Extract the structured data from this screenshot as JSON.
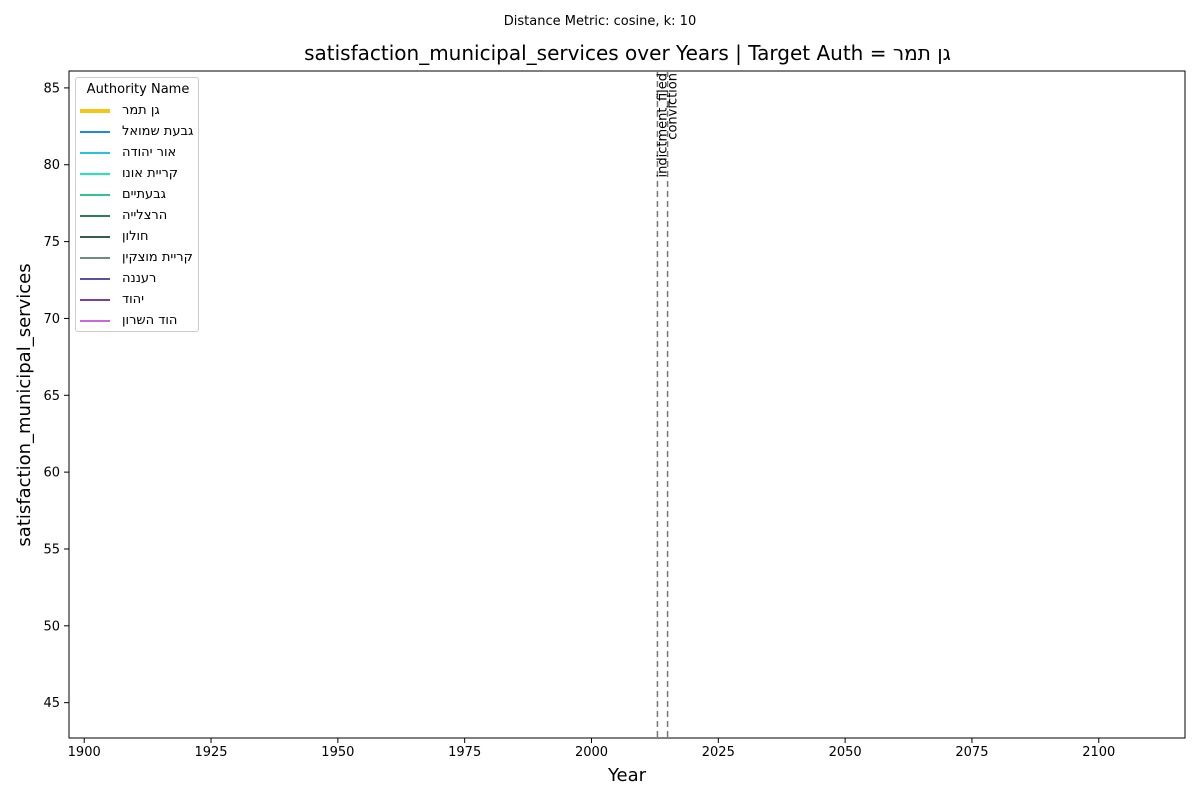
{
  "suptitle": "Distance Metric: cosine, k: 10",
  "chart_data": {
    "type": "line",
    "title": "satisfaction_municipal_services over Years | Target Auth = גן תמר",
    "xlabel": "Year",
    "ylabel": "satisfaction_municipal_services",
    "xlim": [
      1897,
      2117
    ],
    "ylim": [
      42.7,
      86.1
    ],
    "xticks": [
      1900,
      1925,
      1950,
      1975,
      2000,
      2025,
      2050,
      2075,
      2100
    ],
    "yticks": [
      45,
      50,
      55,
      60,
      65,
      70,
      75,
      80,
      85
    ],
    "grid": false,
    "legend": {
      "title": "Authority Name",
      "placement": "top-left",
      "entries": [
        {
          "name": "גן תמר",
          "color": "#f5c518",
          "highlight": true
        },
        {
          "name": "גבעת שמואל",
          "color": "#1f88e5"
        },
        {
          "name": "אור יהודה",
          "color": "#26c6da"
        },
        {
          "name": "קריית אונו",
          "color": "#1de9b6"
        },
        {
          "name": "גבעתיים",
          "color": "#2ec68f"
        },
        {
          "name": "הרצלייה",
          "color": "#2e7d5b"
        },
        {
          "name": "חולון",
          "color": "#2f5f4f"
        },
        {
          "name": "קריית מוצקין",
          "color": "#708a80"
        },
        {
          "name": "רעננה",
          "color": "#5c4fa8"
        },
        {
          "name": "יהוד",
          "color": "#7b3fa0"
        },
        {
          "name": "הוד השרון",
          "color": "#cc66dd"
        }
      ]
    },
    "series": [],
    "annotations": [
      {
        "x": 2013,
        "label": "indictment_filed",
        "style": "dashed",
        "color": "#777777"
      },
      {
        "x": 2015,
        "label": "conviction",
        "style": "dashed",
        "color": "#777777"
      }
    ]
  }
}
